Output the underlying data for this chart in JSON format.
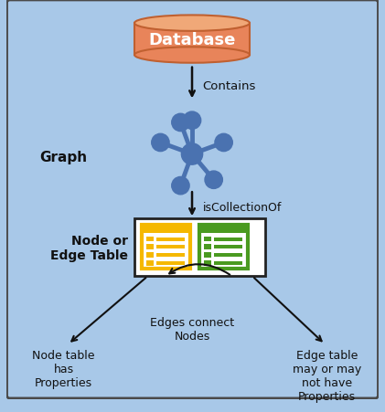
{
  "bg_color": "#a8c8e8",
  "border_color": "#4a4a4a",
  "title": "Database",
  "db_color": "#e8845a",
  "db_top_color": "#f0a878",
  "db_edge_color": "#c06030",
  "graph_node_color": "#4a72b0",
  "arrow_color": "#111111",
  "label_contains": "Contains",
  "label_isCollection": "isCollectionOf",
  "label_graph": "Graph",
  "label_node_edge": "Node or\nEdge Table",
  "label_node_prop": "Node table\nhas\nProperties",
  "label_edges_connect": "Edges connect\nNodes",
  "label_edge_prop": "Edge table\nmay or may\nnot have\nProperties",
  "table_border_color": "#222222",
  "yellow_color": "#f5b800",
  "green_color": "#4a9a20",
  "text_color": "#111111"
}
